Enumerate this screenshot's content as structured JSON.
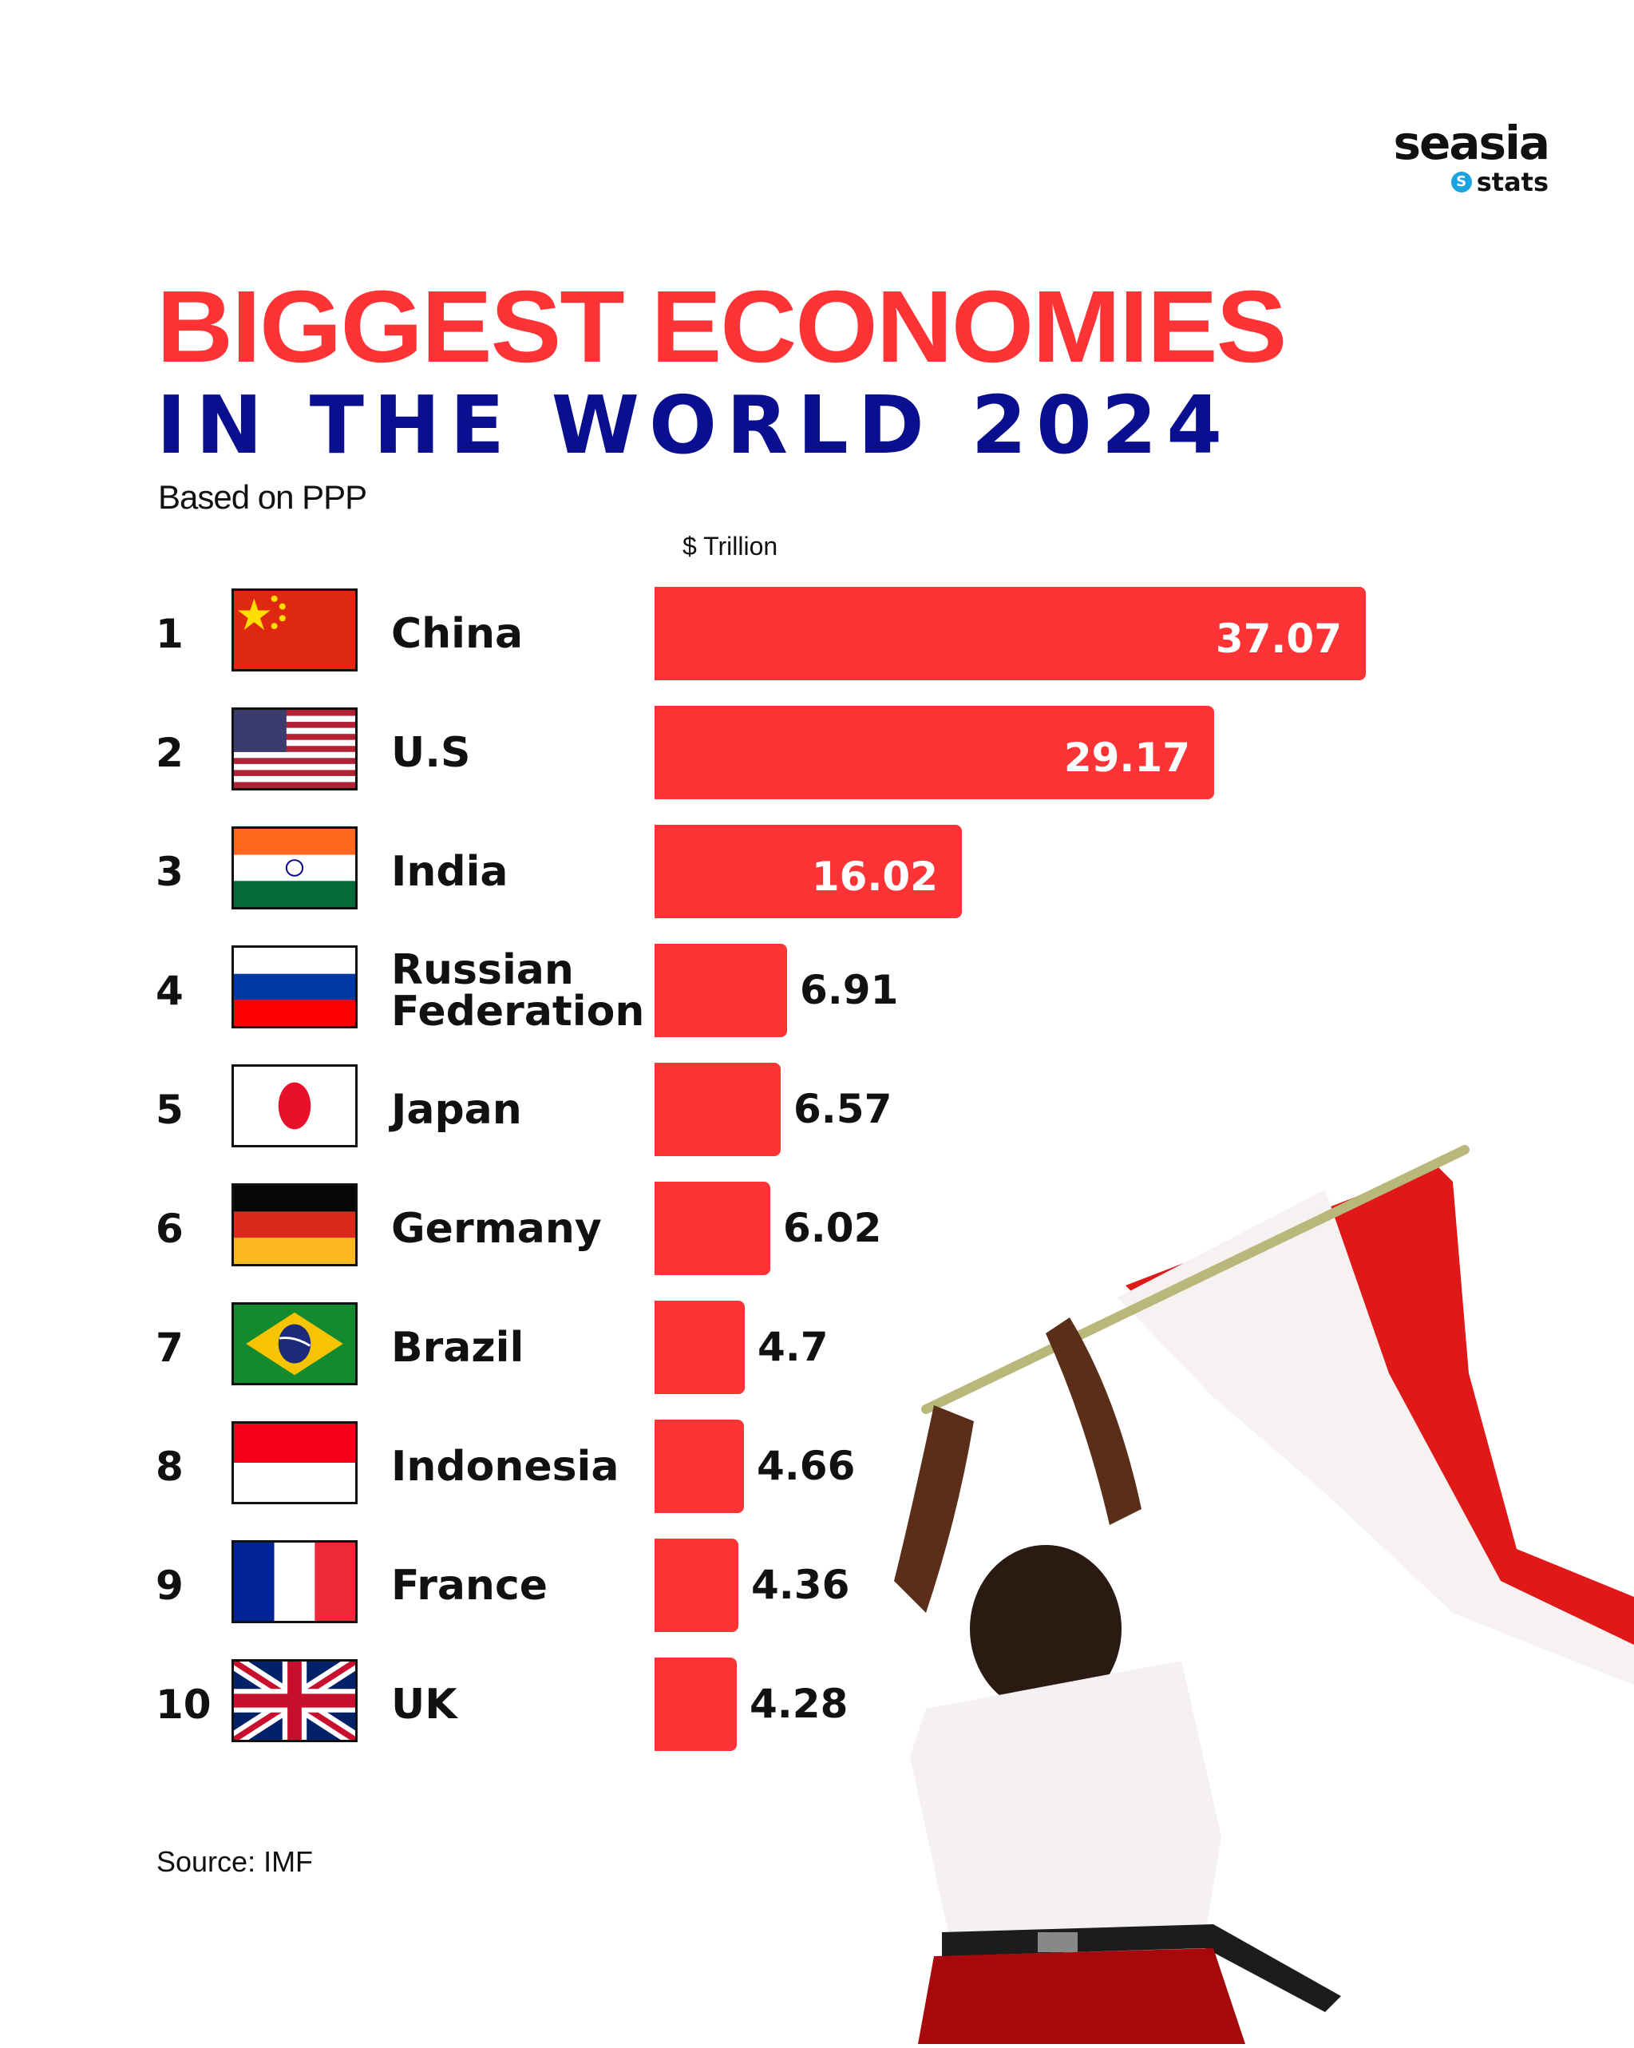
{
  "brand": {
    "name": "seasia",
    "sub": "stats",
    "icon": "s-circle-icon",
    "icon_color": "#1aa3e0"
  },
  "header": {
    "title_line1": "BIGGEST ECONOMIES",
    "title_line2": "IN THE WORLD 2024",
    "subtitle": "Based on PPP",
    "title_color": "#fe3335",
    "title2_color": "#0a0f8f"
  },
  "unit_label": "$ Trillion",
  "rows": [
    {
      "rank": "1",
      "country": "China",
      "value": "37.07",
      "flag": "china-flag-icon"
    },
    {
      "rank": "2",
      "country": "U.S",
      "value": "29.17",
      "flag": "us-flag-icon"
    },
    {
      "rank": "3",
      "country": "India",
      "value": "16.02",
      "flag": "india-flag-icon"
    },
    {
      "rank": "4",
      "country": "Russian\nFederation",
      "value": "6.91",
      "flag": "russia-flag-icon"
    },
    {
      "rank": "5",
      "country": "Japan",
      "value": "6.57",
      "flag": "japan-flag-icon"
    },
    {
      "rank": "6",
      "country": "Germany",
      "value": "6.02",
      "flag": "germany-flag-icon"
    },
    {
      "rank": "7",
      "country": "Brazil",
      "value": "4.7",
      "flag": "brazil-flag-icon"
    },
    {
      "rank": "8",
      "country": "Indonesia",
      "value": "4.66",
      "flag": "indonesia-flag-icon"
    },
    {
      "rank": "9",
      "country": "France",
      "value": "4.36",
      "flag": "france-flag-icon"
    },
    {
      "rank": "10",
      "country": "UK",
      "value": "4.28",
      "flag": "uk-flag-icon"
    }
  ],
  "bar_color": "#fe3335",
  "footer": {
    "source": "Source: IMF"
  },
  "illustration": "child-waving-indonesian-flag-photo",
  "chart_data": {
    "type": "bar",
    "orientation": "horizontal",
    "title": "BIGGEST ECONOMIES IN THE WORLD 2024",
    "subtitle": "Based on PPP",
    "xlabel": "$ Trillion",
    "ylabel": "",
    "categories": [
      "China",
      "U.S",
      "India",
      "Russian Federation",
      "Japan",
      "Germany",
      "Brazil",
      "Indonesia",
      "France",
      "UK"
    ],
    "values": [
      37.07,
      29.17,
      16.02,
      6.91,
      6.57,
      6.02,
      4.7,
      4.66,
      4.36,
      4.28
    ],
    "ranks": [
      1,
      2,
      3,
      4,
      5,
      6,
      7,
      8,
      9,
      10
    ],
    "data_labels": true,
    "grid": false,
    "legend": null,
    "source": "Source: IMF"
  }
}
